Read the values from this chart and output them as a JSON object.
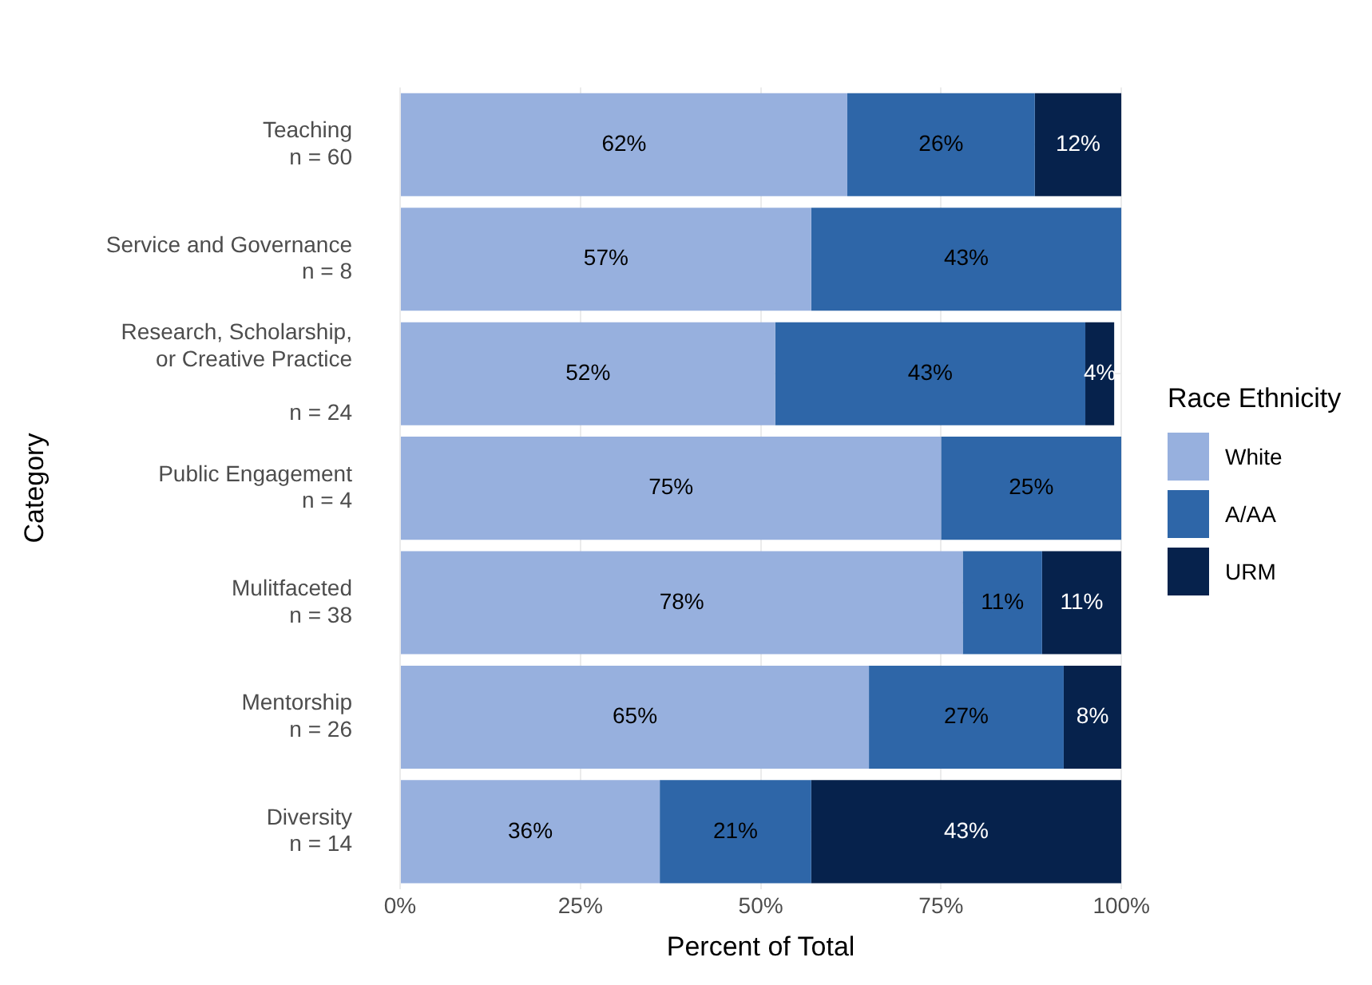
{
  "chart_data": {
    "type": "bar",
    "orientation": "horizontal",
    "stacked": true,
    "xlabel": "Percent of Total",
    "ylabel": "Category",
    "legend_title": "Race Ethnicity",
    "legend": "right",
    "grid": true,
    "categories": [
      "Teaching\nn = 60",
      "Service and Governance\nn = 8",
      "Research, Scholarship,\nor Creative Practice\n\nn = 24",
      "Public Engagement\nn = 4",
      "Mulitfaceted\nn = 38",
      "Mentorship\nn = 26",
      "Diversity\nn = 14"
    ],
    "xlim": [
      0,
      100
    ],
    "xticks": [
      {
        "value": 0,
        "label": "0%"
      },
      {
        "value": 25,
        "label": "25%"
      },
      {
        "value": 50,
        "label": "50%"
      },
      {
        "value": 75,
        "label": "75%"
      },
      {
        "value": 100,
        "label": "100%"
      }
    ],
    "series": [
      {
        "name": "White",
        "color": "#97b0de",
        "values": [
          62,
          57,
          52,
          75,
          78,
          65,
          36
        ],
        "value_labels": [
          "62%",
          "57%",
          "52%",
          "75%",
          "78%",
          "65%",
          "36%"
        ]
      },
      {
        "name": "A/AA",
        "color": "#2e66a8",
        "values": [
          26,
          43,
          43,
          25,
          11,
          27,
          21
        ],
        "value_labels": [
          "26%",
          "43%",
          "43%",
          "25%",
          "11%",
          "27%",
          "21%"
        ]
      },
      {
        "name": "URM",
        "color": "#06224c",
        "values": [
          12,
          null,
          4,
          null,
          11,
          8,
          43
        ],
        "value_labels": [
          "12%",
          null,
          "4%",
          null,
          "11%",
          "8%",
          "43%"
        ]
      }
    ]
  }
}
